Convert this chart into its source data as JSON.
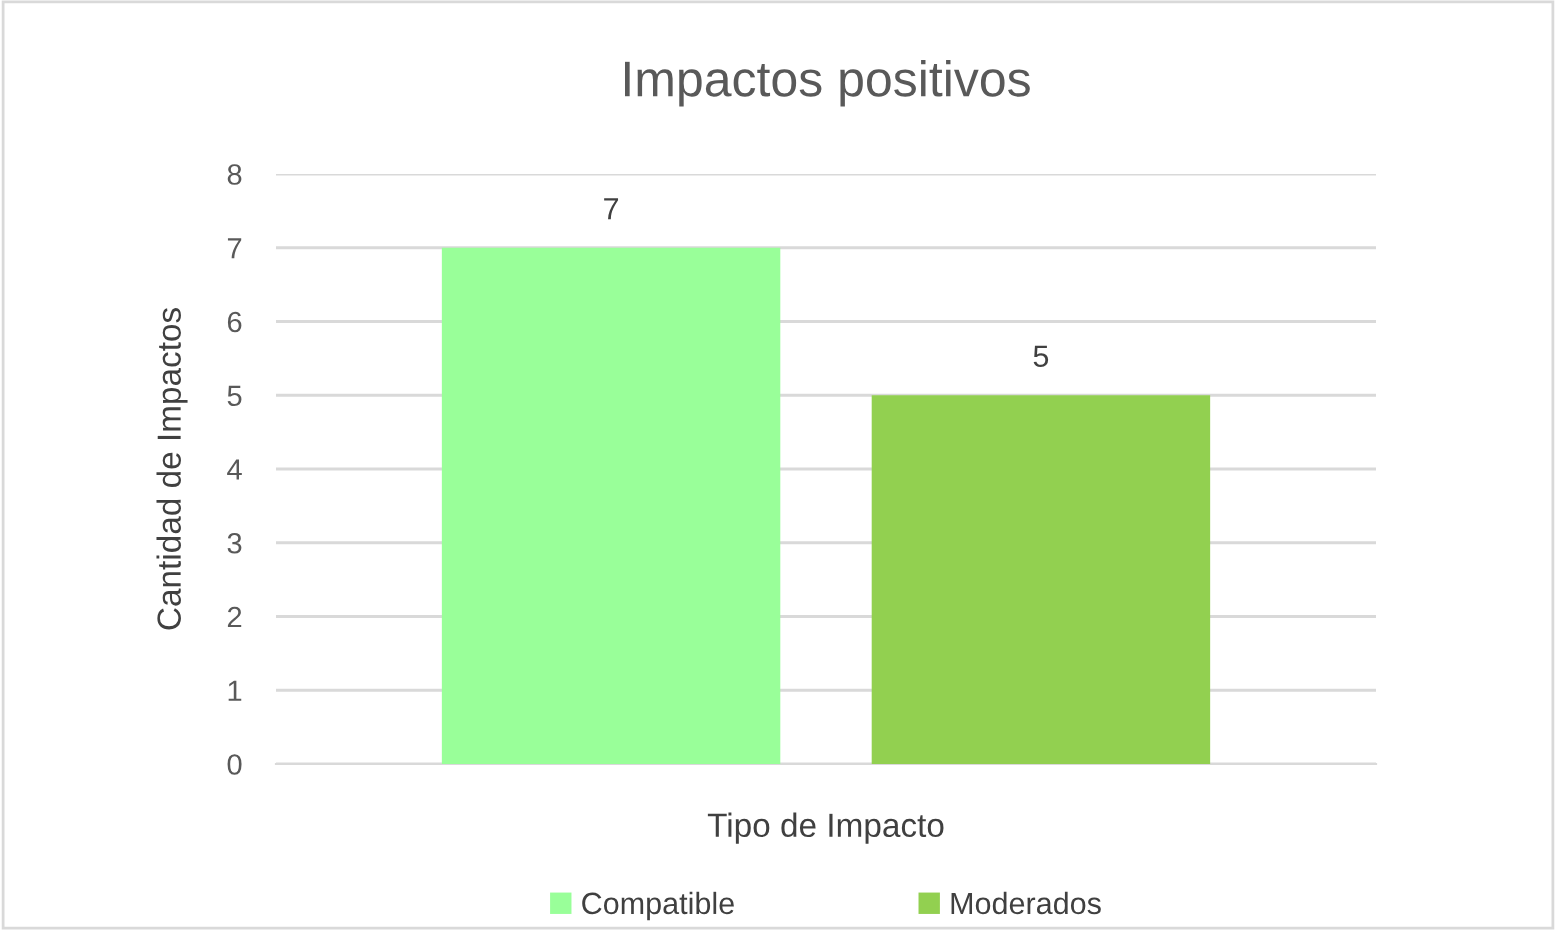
{
  "chart_data": {
    "type": "bar",
    "title": "Impactos positivos",
    "xlabel": "Tipo de Impacto",
    "ylabel": "Cantidad de Impactos",
    "categories": [
      null
    ],
    "series": [
      {
        "name": "Compatible",
        "color": "#99ff99",
        "values": [
          7
        ]
      },
      {
        "name": "Moderados",
        "color": "#92d050",
        "values": [
          5
        ]
      }
    ],
    "ylim": [
      0,
      8
    ],
    "yticks": [
      0,
      1,
      2,
      3,
      4,
      5,
      6,
      7,
      8
    ],
    "grid": "y",
    "legend": "bottom",
    "data_labels": true
  }
}
